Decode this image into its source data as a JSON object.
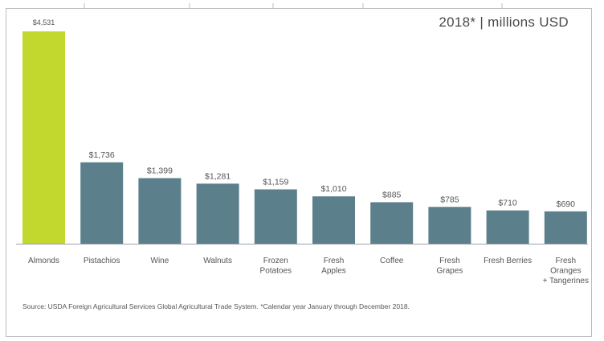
{
  "chart_data": {
    "type": "bar",
    "subtitle": "2018* | millions USD",
    "categories": [
      "Almonds",
      "Pistachios",
      "Wine",
      "Walnuts",
      "Frozen Potatoes",
      "Fresh Apples",
      "Coffee",
      "Fresh Grapes",
      "Fresh Berries",
      "Fresh Oranges + Tangerines"
    ],
    "category_lines": [
      [
        "Almonds"
      ],
      [
        "Pistachios"
      ],
      [
        "Wine"
      ],
      [
        "Walnuts"
      ],
      [
        "Frozen",
        "Potatoes"
      ],
      [
        "Fresh",
        "Apples"
      ],
      [
        "Coffee"
      ],
      [
        "Fresh",
        "Grapes"
      ],
      [
        "Fresh Berries"
      ],
      [
        "Fresh",
        "Oranges",
        "+ Tangerines"
      ]
    ],
    "values": [
      4531,
      1736,
      1399,
      1281,
      1159,
      1010,
      885,
      785,
      710,
      690
    ],
    "data_labels": [
      "$4,531",
      "$1,736",
      "$1,399",
      "$1,281",
      "$1,159",
      "$1,010",
      "$885",
      "$785",
      "$710",
      "$690"
    ],
    "ylim": [
      0,
      4531
    ],
    "colors": {
      "highlight": "#c3d82e",
      "bar": "#5b808b",
      "axis": "#9aa3a6"
    },
    "highlight_index": 0,
    "grid": false,
    "source": "Source: USDA Foreign Agricultural Services Global Agricultural Trade System. *Calendar year January through December 2018."
  }
}
